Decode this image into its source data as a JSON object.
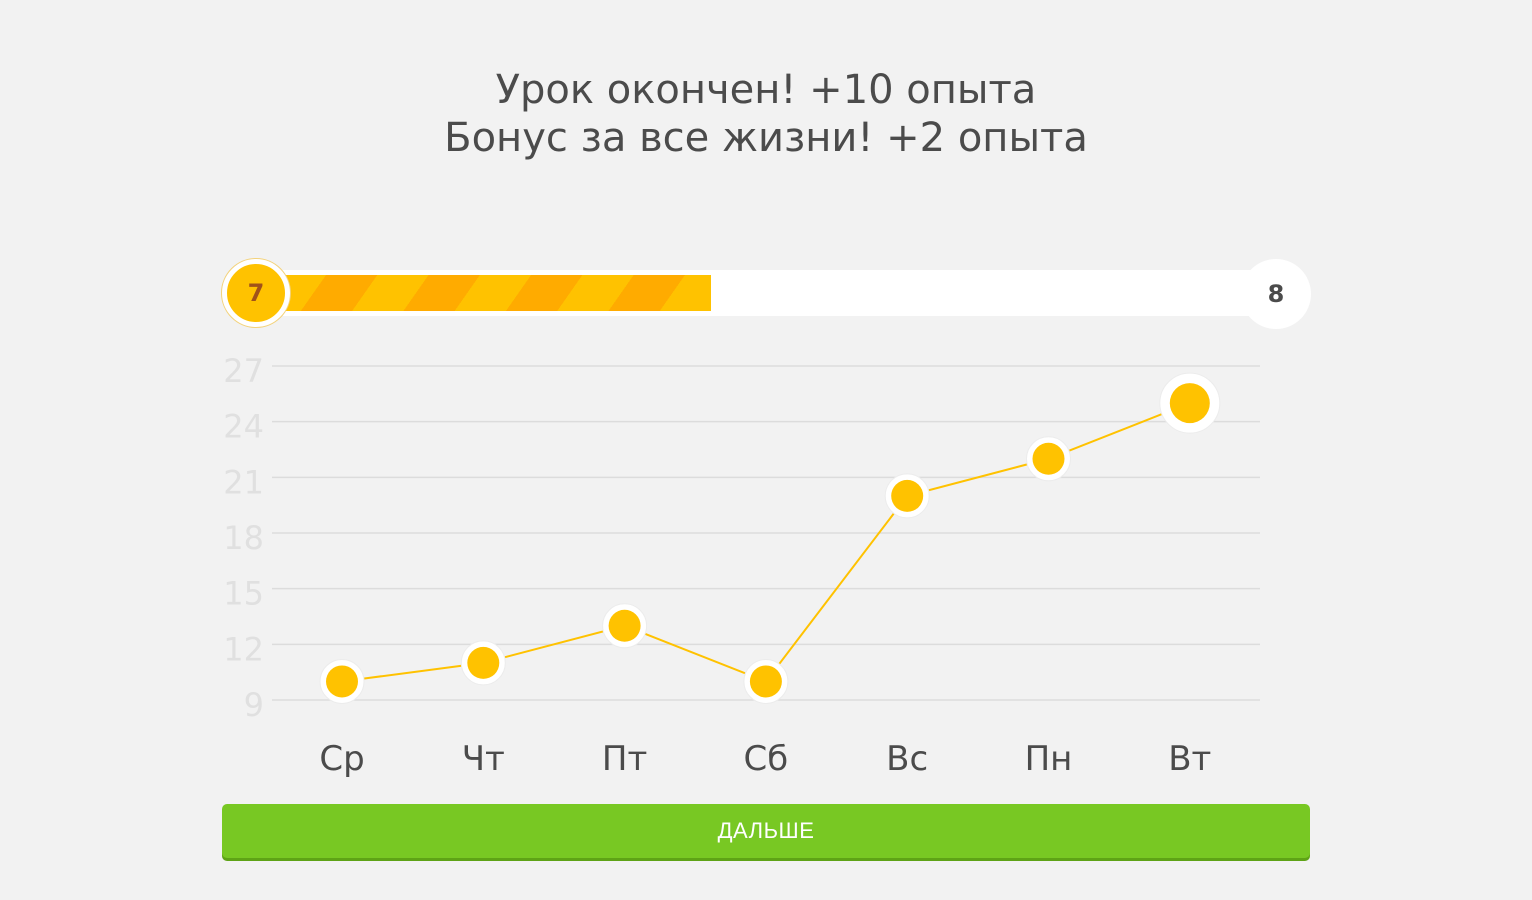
{
  "header": {
    "line1": "Урок окончен! +10 опыта",
    "line2": "Бонус за все жизни! +2 опыта"
  },
  "level": {
    "current": "7",
    "next": "8",
    "progress": 0.46
  },
  "chart_data": {
    "type": "line",
    "categories": [
      "Ср",
      "Чт",
      "Пт",
      "Сб",
      "Вс",
      "Пн",
      "Вт"
    ],
    "values": [
      10,
      11,
      13,
      10,
      20,
      22,
      25
    ],
    "yticks": [
      "27",
      "24",
      "21",
      "18",
      "15",
      "12",
      "9"
    ],
    "ylim": [
      9,
      27
    ],
    "grid": true,
    "line_color": "#ffc200",
    "point_color": "#ffc200"
  },
  "actions": {
    "continue_label": "ДАЛЬШЕ"
  },
  "colors": {
    "background": "#f2f2f2",
    "progress": "#ffc200",
    "button": "#78c823"
  }
}
